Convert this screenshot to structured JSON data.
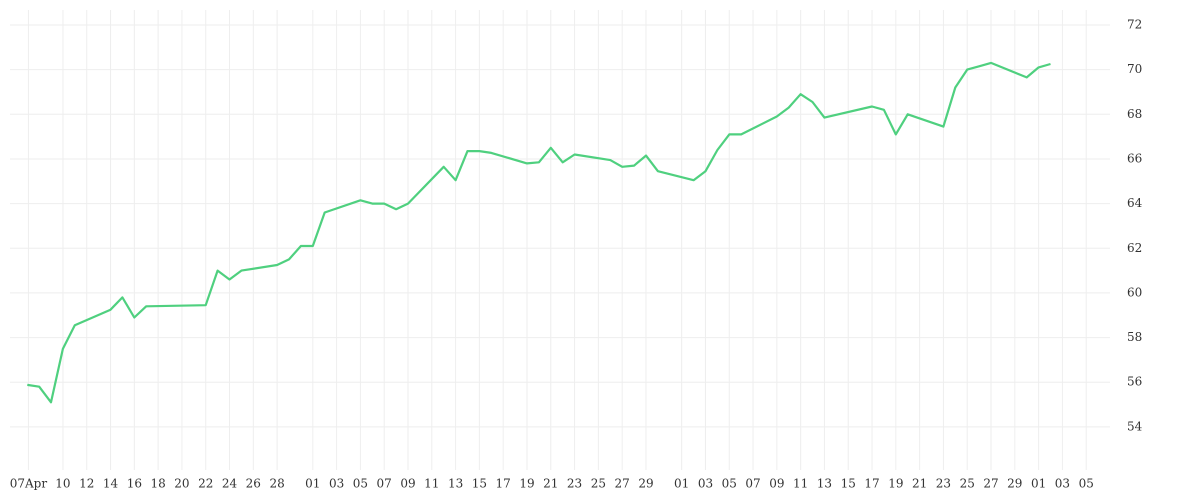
{
  "chart_data": {
    "type": "line",
    "x": [
      0,
      1,
      2,
      3,
      4,
      7,
      8,
      9,
      10,
      15,
      16,
      17,
      18,
      21,
      22,
      23,
      24,
      25,
      28,
      29,
      30,
      31,
      32,
      35,
      36,
      37,
      38,
      39,
      42,
      43,
      44,
      45,
      46,
      49,
      50,
      51,
      52,
      53,
      56,
      57,
      58,
      59,
      60,
      63,
      64,
      65,
      66,
      67,
      71,
      72,
      73,
      74,
      77,
      78,
      79,
      80,
      81,
      84,
      85,
      86
    ],
    "series": [
      {
        "color": "#4fd07f",
        "values": [
          55.88,
          55.8,
          55.1,
          57.5,
          58.55,
          59.25,
          59.8,
          58.9,
          59.4,
          59.45,
          61.0,
          60.6,
          61.0,
          61.25,
          61.5,
          62.1,
          62.1,
          63.6,
          64.15,
          64.0,
          64.0,
          63.75,
          64.0,
          65.65,
          65.05,
          66.35,
          66.35,
          66.27,
          65.8,
          65.85,
          66.5,
          65.85,
          66.2,
          65.95,
          65.65,
          65.7,
          66.15,
          65.45,
          65.05,
          65.45,
          66.4,
          67.1,
          67.1,
          67.9,
          68.3,
          68.9,
          68.55,
          67.85,
          68.35,
          68.2,
          67.1,
          68.0,
          67.45,
          69.2,
          70.0,
          70.15,
          70.3,
          69.65,
          70.1,
          70.25
        ]
      }
    ],
    "xlim": [
      -1.45,
      91.0
    ],
    "xticks": [
      {
        "value": 0.1,
        "label": "07Apr"
      },
      {
        "value": 3,
        "label": "10"
      },
      {
        "value": 5,
        "label": "12"
      },
      {
        "value": 7,
        "label": "14"
      },
      {
        "value": 9,
        "label": "16"
      },
      {
        "value": 11,
        "label": "18"
      },
      {
        "value": 13,
        "label": "20"
      },
      {
        "value": 15,
        "label": "22"
      },
      {
        "value": 17,
        "label": "24"
      },
      {
        "value": 19,
        "label": "26"
      },
      {
        "value": 21,
        "label": "28"
      },
      {
        "value": 24,
        "label": "01"
      },
      {
        "value": 26,
        "label": "03"
      },
      {
        "value": 28,
        "label": "05"
      },
      {
        "value": 30,
        "label": "07"
      },
      {
        "value": 32,
        "label": "09"
      },
      {
        "value": 34,
        "label": "11"
      },
      {
        "value": 36,
        "label": "13"
      },
      {
        "value": 38,
        "label": "15"
      },
      {
        "value": 40,
        "label": "17"
      },
      {
        "value": 42,
        "label": "19"
      },
      {
        "value": 44,
        "label": "21"
      },
      {
        "value": 46,
        "label": "23"
      },
      {
        "value": 48,
        "label": "25"
      },
      {
        "value": 50,
        "label": "27"
      },
      {
        "value": 52,
        "label": "29"
      },
      {
        "value": 55,
        "label": "01"
      },
      {
        "value": 57,
        "label": "03"
      },
      {
        "value": 59,
        "label": "05"
      },
      {
        "value": 61,
        "label": "07"
      },
      {
        "value": 63,
        "label": "09"
      },
      {
        "value": 65,
        "label": "11"
      },
      {
        "value": 67,
        "label": "13"
      },
      {
        "value": 69,
        "label": "15"
      },
      {
        "value": 71,
        "label": "17"
      },
      {
        "value": 73,
        "label": "19"
      },
      {
        "value": 75,
        "label": "21"
      },
      {
        "value": 77,
        "label": "23"
      },
      {
        "value": 79,
        "label": "25"
      },
      {
        "value": 81,
        "label": "27"
      },
      {
        "value": 83,
        "label": "29"
      },
      {
        "value": 85,
        "label": "01"
      },
      {
        "value": 87,
        "label": "03"
      },
      {
        "value": 89,
        "label": "05"
      }
    ],
    "ylim": [
      52.07,
      72.67
    ],
    "yticks": [
      54,
      56,
      58,
      60,
      62,
      64,
      66,
      68,
      70,
      72
    ],
    "grid": true
  }
}
